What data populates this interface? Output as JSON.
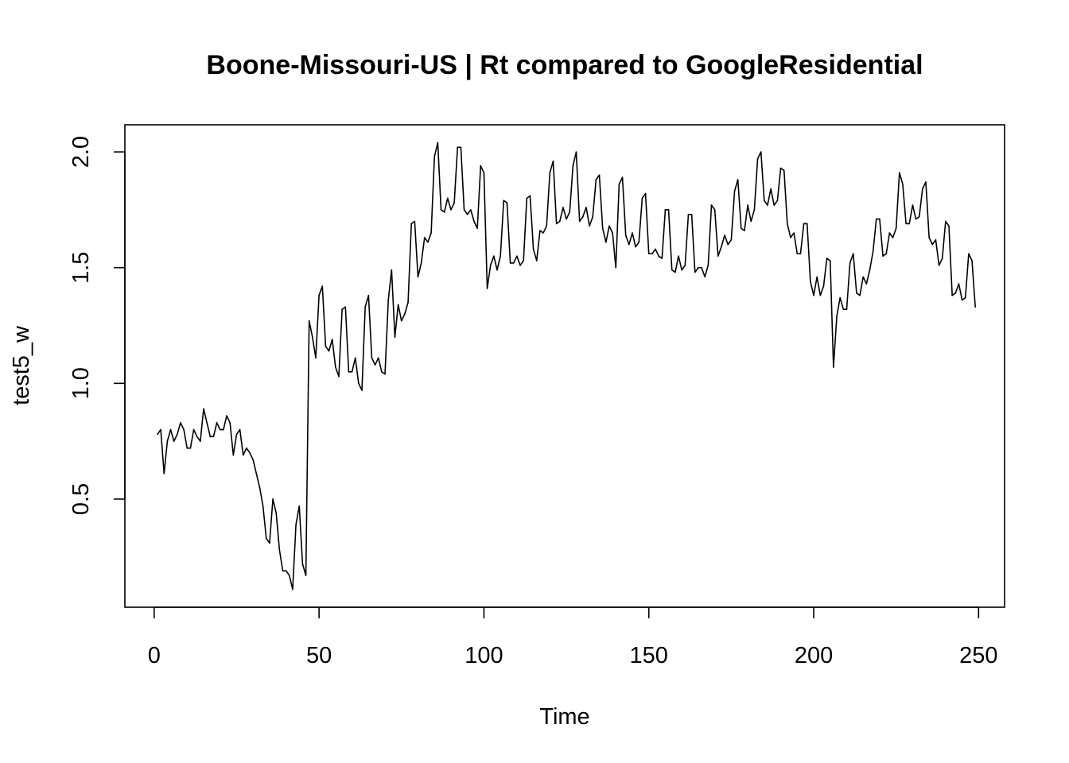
{
  "chart_data": {
    "type": "line",
    "title": "Boone-Missouri-US | Rt compared to GoogleResidential",
    "xlabel": "Time",
    "ylabel": "test5_w",
    "xlim": [
      1,
      248
    ],
    "ylim": [
      0.11,
      2.04
    ],
    "x_ticks": [
      0,
      50,
      100,
      150,
      200,
      250
    ],
    "y_ticks": [
      0.5,
      1.0,
      1.5,
      2.0
    ],
    "x_tick_labels": [
      "0",
      "50",
      "100",
      "150",
      "200",
      "250"
    ],
    "y_tick_labels": [
      "0.5",
      "1.0",
      "1.5",
      "2.0"
    ],
    "grid": false,
    "legend": "none",
    "line_color": "#000000",
    "series": [
      {
        "values": [
          0.78,
          0.8,
          0.61,
          0.75,
          0.8,
          0.75,
          0.78,
          0.83,
          0.8,
          0.72,
          0.72,
          0.8,
          0.77,
          0.75,
          0.89,
          0.83,
          0.77,
          0.77,
          0.83,
          0.8,
          0.8,
          0.86,
          0.83,
          0.69,
          0.78,
          0.8,
          0.69,
          0.72,
          0.7,
          0.67,
          0.61,
          0.55,
          0.47,
          0.33,
          0.31,
          0.5,
          0.44,
          0.28,
          0.19,
          0.19,
          0.17,
          0.11,
          0.39,
          0.47,
          0.22,
          0.17,
          1.27,
          1.2,
          1.11,
          1.38,
          1.42,
          1.16,
          1.14,
          1.19,
          1.07,
          1.03,
          1.32,
          1.33,
          1.05,
          1.05,
          1.11,
          1.0,
          0.97,
          1.33,
          1.38,
          1.11,
          1.08,
          1.11,
          1.05,
          1.04,
          1.36,
          1.49,
          1.2,
          1.34,
          1.27,
          1.3,
          1.35,
          1.69,
          1.7,
          1.46,
          1.52,
          1.63,
          1.61,
          1.65,
          1.98,
          2.04,
          1.75,
          1.74,
          1.8,
          1.75,
          1.78,
          2.02,
          2.02,
          1.75,
          1.73,
          1.75,
          1.7,
          1.67,
          1.94,
          1.91,
          1.41,
          1.51,
          1.55,
          1.49,
          1.55,
          1.79,
          1.78,
          1.52,
          1.52,
          1.55,
          1.51,
          1.53,
          1.8,
          1.81,
          1.58,
          1.53,
          1.66,
          1.65,
          1.68,
          1.91,
          1.96,
          1.69,
          1.7,
          1.76,
          1.71,
          1.74,
          1.94,
          2.0,
          1.7,
          1.72,
          1.76,
          1.68,
          1.72,
          1.88,
          1.9,
          1.67,
          1.61,
          1.68,
          1.65,
          1.5,
          1.86,
          1.89,
          1.64,
          1.6,
          1.65,
          1.59,
          1.61,
          1.8,
          1.82,
          1.56,
          1.56,
          1.58,
          1.55,
          1.54,
          1.75,
          1.75,
          1.49,
          1.48,
          1.55,
          1.49,
          1.51,
          1.73,
          1.73,
          1.48,
          1.5,
          1.5,
          1.46,
          1.51,
          1.77,
          1.75,
          1.55,
          1.59,
          1.64,
          1.6,
          1.62,
          1.83,
          1.88,
          1.67,
          1.66,
          1.77,
          1.7,
          1.75,
          1.97,
          2.0,
          1.79,
          1.77,
          1.84,
          1.77,
          1.79,
          1.93,
          1.92,
          1.69,
          1.63,
          1.65,
          1.56,
          1.56,
          1.69,
          1.69,
          1.44,
          1.38,
          1.46,
          1.38,
          1.42,
          1.54,
          1.53,
          1.07,
          1.29,
          1.37,
          1.32,
          1.32,
          1.52,
          1.56,
          1.39,
          1.38,
          1.46,
          1.43,
          1.49,
          1.57,
          1.71,
          1.71,
          1.55,
          1.56,
          1.65,
          1.63,
          1.67,
          1.91,
          1.86,
          1.69,
          1.69,
          1.77,
          1.71,
          1.72,
          1.84,
          1.87,
          1.63,
          1.6,
          1.62,
          1.51,
          1.54,
          1.7,
          1.68,
          1.38,
          1.39,
          1.43,
          1.36,
          1.37,
          1.56,
          1.53,
          1.33
        ]
      }
    ]
  }
}
